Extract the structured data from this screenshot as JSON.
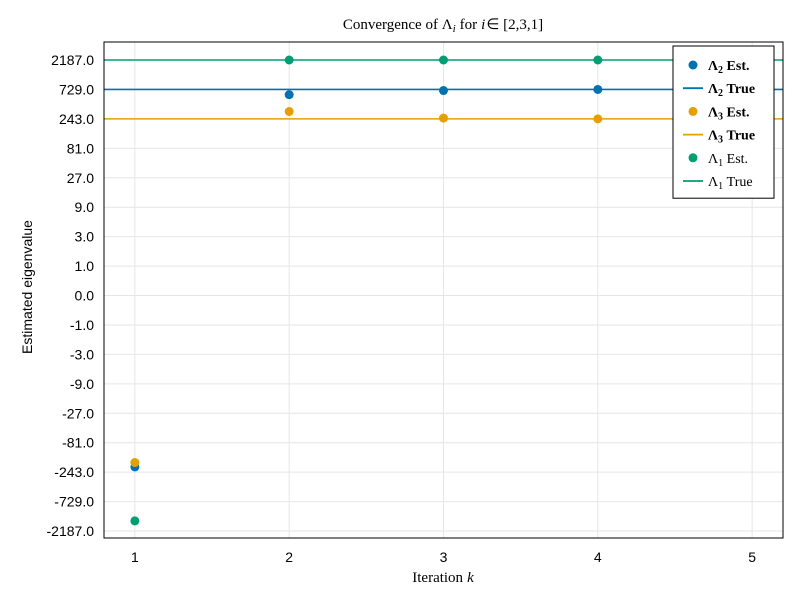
{
  "chart_data": {
    "type": "scatter",
    "title_text": "Convergence of Λ",
    "title_sub": "i",
    "title_for": "for",
    "title_i": "i",
    "title_rest": "∈ [2,3,1]",
    "xlabel_text": "Iteration",
    "xlabel_k": "k",
    "ylabel": "Estimated eigenvalue",
    "x_ticks": [
      "1",
      "2",
      "3",
      "4",
      "5"
    ],
    "x_tick_values": [
      1,
      2,
      3,
      4,
      5
    ],
    "xlim": [
      0.8,
      5.2
    ],
    "y_scale": "signed-log3",
    "y_ticks": [
      "2187.0",
      "729.0",
      "243.0",
      "81.0",
      "27.0",
      "9.0",
      "3.0",
      "1.0",
      "0.0",
      "-1.0",
      "-3.0",
      "-9.0",
      "-27.0",
      "-81.0",
      "-243.0",
      "-729.0",
      "-2187.0"
    ],
    "y_tick_values": [
      2187,
      729,
      243,
      81,
      27,
      9,
      3,
      1,
      0,
      -1,
      -3,
      -9,
      -27,
      -81,
      -243,
      -729,
      -2187
    ],
    "grid": true,
    "legend_position": "top-right",
    "series": [
      {
        "name": "Λ2 Est.",
        "label_main": "Λ",
        "label_sub": "2",
        "label_rest": " Est.",
        "bold": true,
        "kind": "points",
        "color": "#0072B2",
        "x": [
          1,
          2,
          3,
          4
        ],
        "y": [
          -200,
          600,
          700,
          729
        ]
      },
      {
        "name": "Λ2 True",
        "label_main": "Λ",
        "label_sub": "2",
        "label_rest": " True",
        "bold": true,
        "kind": "hline",
        "color": "#0072B2",
        "y": 729
      },
      {
        "name": "Λ3 Est.",
        "label_main": "Λ",
        "label_sub": "3",
        "label_rest": " Est.",
        "bold": true,
        "kind": "points",
        "color": "#E69F00",
        "x": [
          1,
          2,
          3,
          4
        ],
        "y": [
          -170,
          320,
          250,
          243
        ]
      },
      {
        "name": "Λ3 True",
        "label_main": "Λ",
        "label_sub": "3",
        "label_rest": " True",
        "bold": true,
        "kind": "hline",
        "color": "#E69F00",
        "y": 243
      },
      {
        "name": "Λ1 Est.",
        "label_main": "Λ",
        "label_sub": "1",
        "label_rest": " Est.",
        "bold": false,
        "kind": "points",
        "color": "#009E73",
        "x": [
          1,
          2,
          3,
          4
        ],
        "y": [
          -1500,
          2187,
          2187,
          2187
        ]
      },
      {
        "name": "Λ1 True",
        "label_main": "Λ",
        "label_sub": "1",
        "label_rest": " True",
        "bold": false,
        "kind": "hline",
        "color": "#009E73",
        "y": 2187
      }
    ]
  }
}
